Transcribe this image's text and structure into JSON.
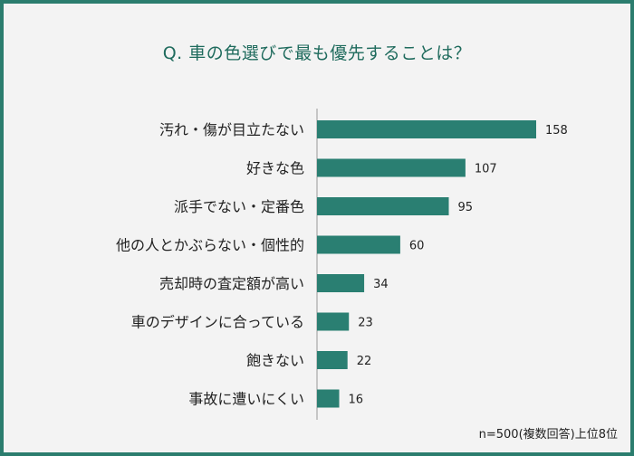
{
  "chart_data": {
    "type": "bar",
    "orientation": "horizontal",
    "title": "Q. 車の色選びで最も優先することは？",
    "categories": [
      "汚れ・傷が目立たない",
      "好きな色",
      "派手でない・定番色",
      "他の人とかぶらない・個性的",
      "売却時の査定額が高い",
      "車のデザインに合っている",
      "飽きない",
      "事故に遭いにくい"
    ],
    "values": [
      158,
      107,
      95,
      60,
      34,
      23,
      22,
      16
    ],
    "xlim": [
      0,
      158
    ],
    "grid": false,
    "note": "n=500(複数回答)上位8位"
  },
  "colors": {
    "bar": "#2a7f72",
    "title": "#1f6b5d",
    "frame": "#2b7d6e",
    "background": "#f3f3f3"
  }
}
